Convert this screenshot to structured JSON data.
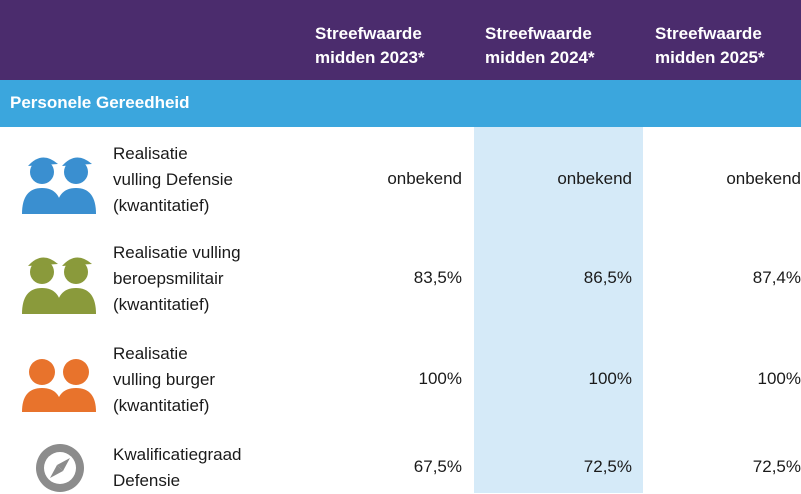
{
  "header": {
    "columns": [
      [
        "Streefwaarde",
        "midden 2023*"
      ],
      [
        "Streefwaarde",
        "midden 2024*"
      ],
      [
        "Streefwaarde",
        "midden 2025*"
      ]
    ]
  },
  "section": {
    "title": "Personele Gereedheid"
  },
  "rows": [
    {
      "label": [
        "Realisatie",
        "vulling Defensie",
        "(kwantitatief)"
      ],
      "values": [
        "onbekend",
        "onbekend",
        "onbekend"
      ]
    },
    {
      "label": [
        "Realisatie vulling",
        "beroepsmilitair",
        "(kwantitatief)"
      ],
      "values": [
        "83,5%",
        "86,5%",
        "87,4%"
      ]
    },
    {
      "label": [
        "Realisatie",
        "vulling burger",
        "(kwantitatief)"
      ],
      "values": [
        "100%",
        "100%",
        "100%"
      ]
    },
    {
      "label": [
        "Kwalificatiegraad",
        "Defensie"
      ],
      "values": [
        "67,5%",
        "72,5%",
        "72,5%"
      ]
    }
  ]
}
